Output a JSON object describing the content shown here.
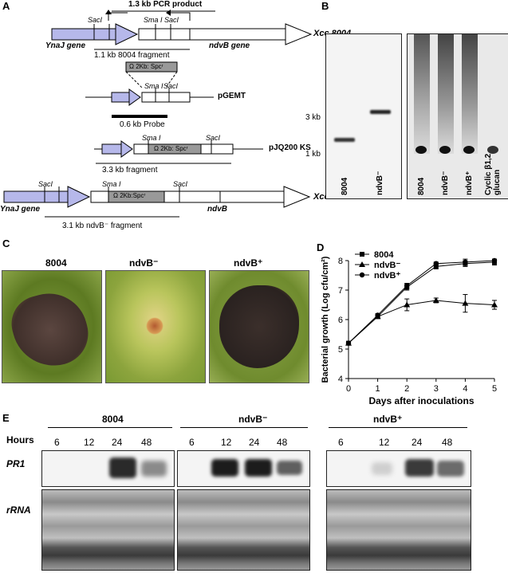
{
  "panels": {
    "a": "A",
    "b": "B",
    "c": "C",
    "d": "D",
    "e": "E"
  },
  "panel_a": {
    "pcr_product": "1.3 kb PCR product",
    "xcc8004_line": "Xcc 8004",
    "ynaj_gene": "YnaJ gene",
    "fragment_8004": "1.1 kb 8004 fragment",
    "ndvb_gene": "ndvB gene",
    "saci": "SacI",
    "smai": "Sma I",
    "omega_cassette": "Ω 2Kb: Spcʳ",
    "omega_cassette_2": "Ω 2Kb:Spcʳ",
    "pgemt": "pGEMT",
    "probe": "0.6 kb Probe",
    "pjq200": "pJQ200 KS",
    "fragment_33": "3.3 kb fragment",
    "xcc_ndvb": "Xcc ndvB⁻",
    "ynaj_gene_2": "YnaJ gene",
    "ndvb": "ndvB",
    "fragment_31": "3.1 kb ndvB⁻ fragment"
  },
  "panel_b": {
    "marker_3kb": "3 kb",
    "marker_1kb": "1 kb",
    "lanes_left": [
      "8004",
      "ndvB⁻"
    ],
    "lanes_right": [
      "8004",
      "ndvB⁻",
      "ndvB⁺",
      "Cyclic β1,2 glucan"
    ]
  },
  "panel_c": {
    "leaves": [
      "8004",
      "ndvB⁻",
      "ndvB⁺"
    ]
  },
  "panel_e": {
    "groups": [
      "8004",
      "ndvB⁻",
      "ndvB⁺"
    ],
    "hours_label": "Hours",
    "hours": [
      "6",
      "12",
      "24",
      "48"
    ],
    "row_labels": [
      "PR1",
      "rRNA"
    ]
  },
  "chart_data": {
    "type": "line",
    "xlabel": "Days after inoculations",
    "ylabel": "Bacterial growth (Log cfu/cm²)",
    "x": [
      0,
      1,
      2,
      3,
      4,
      5
    ],
    "xlim": [
      0,
      5
    ],
    "ylim": [
      4,
      8
    ],
    "xticks": [
      "0",
      "1",
      "2",
      "3",
      "4",
      "5"
    ],
    "yticks": [
      "4",
      "5",
      "6",
      "7",
      "8"
    ],
    "legend_position": "top-left",
    "series": [
      {
        "name": "8004",
        "marker": "square",
        "values": [
          5.2,
          6.1,
          7.1,
          7.8,
          7.9,
          7.95
        ],
        "err": [
          0.05,
          0.05,
          0.1,
          0.08,
          0.1,
          0.1
        ]
      },
      {
        "name": "ndvB⁻",
        "marker": "triangle",
        "values": [
          5.2,
          6.1,
          6.5,
          6.65,
          6.55,
          6.5
        ],
        "err": [
          0.05,
          0.05,
          0.2,
          0.08,
          0.3,
          0.15
        ]
      },
      {
        "name": "ndvB⁺",
        "marker": "circle",
        "values": [
          5.2,
          6.15,
          7.15,
          7.9,
          7.95,
          8.0
        ],
        "err": [
          0.05,
          0.05,
          0.08,
          0.05,
          0.1,
          0.05
        ]
      }
    ]
  }
}
